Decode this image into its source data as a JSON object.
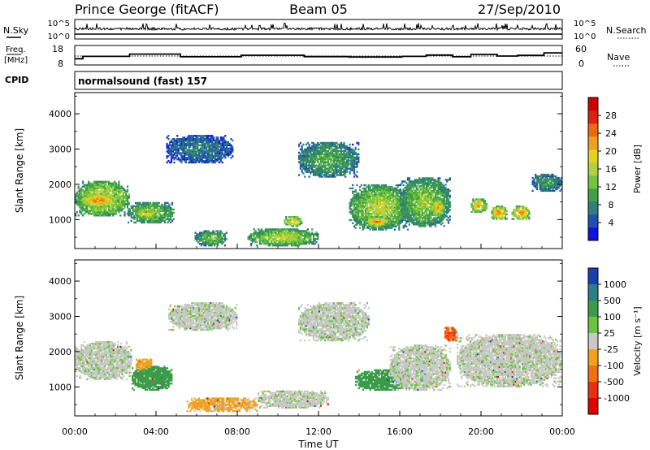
{
  "header": {
    "title": "Prince George (fitACF)",
    "beam": "Beam 05",
    "date": "27/Sep/2010"
  },
  "noise_panel": {
    "left_label": "N.Sky",
    "right_label": "N.Search",
    "left_ticks": [
      "10^5",
      "10^0"
    ],
    "right_ticks": [
      "10^5",
      "10^0"
    ]
  },
  "freq_panel": {
    "left_label_1": "Freq.",
    "left_label_2": "[MHz]",
    "right_label": "Nave",
    "left_ticks": [
      "18",
      "8"
    ],
    "right_ticks": [
      "60",
      "0"
    ]
  },
  "cpid": {
    "label": "CPID",
    "mode": "normalsound (fast) 157"
  },
  "axes": {
    "ylabel": "Slant Range [km]",
    "xlabel": "Time UT",
    "y_ticks": [
      "1000",
      "2000",
      "3000",
      "4000"
    ],
    "x_ticks": [
      "00:00",
      "04:00",
      "08:00",
      "12:00",
      "16:00",
      "20:00",
      "00:00"
    ]
  },
  "power_scale": {
    "label": "Power [dB]",
    "ticks": [
      "4",
      "8",
      "12",
      "16",
      "20",
      "24",
      "28"
    ],
    "colors": [
      "#1010e0",
      "#2050b0",
      "#2f7f7a",
      "#3f9f4a",
      "#72c43c",
      "#b4d040",
      "#e6d020",
      "#f0a020",
      "#ee6a10",
      "#e02010",
      "#d00000"
    ]
  },
  "velocity_scale": {
    "label": "Velocity [m s⁻¹]",
    "ticks": [
      "1000",
      "500",
      "100",
      "25",
      "-25",
      "-100",
      "-500",
      "-1000"
    ],
    "colors": [
      "#1a3fb0",
      "#2b7e8a",
      "#3a9c4a",
      "#6cc43c",
      "#c8c8c4",
      "#c8c8c4",
      "#f2a020",
      "#f07010",
      "#e83010",
      "#e00000"
    ]
  },
  "chart_data": [
    {
      "type": "heatmap",
      "title": "Power",
      "xlabel": "Time UT",
      "ylabel": "Slant Range [km]",
      "xlim": [
        0,
        24
      ],
      "ylim": [
        180,
        4600
      ],
      "colorbar_label": "Power [dB]",
      "colorbar_range": [
        0,
        32
      ],
      "blobs": [
        {
          "t": [
            0.0,
            2.7
          ],
          "r": [
            1100,
            2100
          ],
          "level": 20
        },
        {
          "t": [
            0.2,
            2.2
          ],
          "r": [
            1350,
            1750
          ],
          "level": 26
        },
        {
          "t": [
            2.6,
            4.9
          ],
          "r": [
            900,
            1500
          ],
          "level": 16
        },
        {
          "t": [
            3.0,
            4.0
          ],
          "r": [
            1050,
            1250
          ],
          "level": 24
        },
        {
          "t": [
            4.5,
            7.8
          ],
          "r": [
            2600,
            3400
          ],
          "level": 7
        },
        {
          "t": [
            5.9,
            7.5
          ],
          "r": [
            250,
            700
          ],
          "level": 14
        },
        {
          "t": [
            8.5,
            12.0
          ],
          "r": [
            250,
            750
          ],
          "level": 18
        },
        {
          "t": [
            10.3,
            11.2
          ],
          "r": [
            800,
            1100
          ],
          "level": 22
        },
        {
          "t": [
            11.0,
            14.0
          ],
          "r": [
            2200,
            3200
          ],
          "level": 12
        },
        {
          "t": [
            13.5,
            16.5
          ],
          "r": [
            700,
            2000
          ],
          "level": 18
        },
        {
          "t": [
            14.3,
            15.5
          ],
          "r": [
            800,
            1100
          ],
          "level": 25
        },
        {
          "t": [
            16.0,
            18.5
          ],
          "r": [
            800,
            2200
          ],
          "level": 16
        },
        {
          "t": [
            17.5,
            18.2
          ],
          "r": [
            1100,
            1600
          ],
          "level": 24
        },
        {
          "t": [
            19.5,
            20.3
          ],
          "r": [
            1200,
            1600
          ],
          "level": 24
        },
        {
          "t": [
            20.5,
            21.3
          ],
          "r": [
            1000,
            1400
          ],
          "level": 26
        },
        {
          "t": [
            21.5,
            22.4
          ],
          "r": [
            1000,
            1400
          ],
          "level": 26
        },
        {
          "t": [
            22.5,
            24.0
          ],
          "r": [
            1800,
            2300
          ],
          "level": 10
        }
      ]
    },
    {
      "type": "heatmap",
      "title": "Velocity",
      "xlabel": "Time UT",
      "ylabel": "Slant Range [km]",
      "xlim": [
        0,
        24
      ],
      "ylim": [
        180,
        4600
      ],
      "colorbar_label": "Velocity [m s⁻¹]",
      "colorbar_range": [
        -1000,
        1000
      ],
      "blobs": [
        {
          "t": [
            0.0,
            2.8
          ],
          "r": [
            1200,
            2300
          ],
          "v": 0
        },
        {
          "t": [
            2.8,
            4.8
          ],
          "r": [
            900,
            1600
          ],
          "v": 100
        },
        {
          "t": [
            3.0,
            3.8
          ],
          "r": [
            1500,
            1800
          ],
          "v": -200
        },
        {
          "t": [
            4.6,
            8.0
          ],
          "r": [
            2600,
            3400
          ],
          "v": 0
        },
        {
          "t": [
            5.5,
            9.0
          ],
          "r": [
            300,
            700
          ],
          "v": -80
        },
        {
          "t": [
            9.0,
            12.5
          ],
          "r": [
            400,
            900
          ],
          "v": 0
        },
        {
          "t": [
            11.0,
            14.5
          ],
          "r": [
            2300,
            3400
          ],
          "v": 0
        },
        {
          "t": [
            13.8,
            16.5
          ],
          "r": [
            900,
            1500
          ],
          "v": 100
        },
        {
          "t": [
            15.5,
            18.5
          ],
          "r": [
            900,
            2200
          ],
          "v": 0
        },
        {
          "t": [
            18.2,
            18.8
          ],
          "r": [
            2300,
            2700
          ],
          "v": -700
        },
        {
          "t": [
            18.8,
            24.0
          ],
          "r": [
            1000,
            2500
          ],
          "v": 0
        }
      ]
    },
    {
      "type": "line",
      "title": "Frequency",
      "ylabel": "Freq. [MHz]",
      "ylim": [
        8,
        18
      ],
      "x": [
        0,
        0.4,
        2.7,
        5.2,
        8.2,
        11.3,
        13.5,
        16.1,
        17.3,
        18.6,
        19.5,
        20.8,
        21.8,
        23.1,
        24
      ],
      "values": [
        11.2,
        12.4,
        13.6,
        12.2,
        13.0,
        12.3,
        12.1,
        12.4,
        13.1,
        12.2,
        13.4,
        12.6,
        12.9,
        14.2,
        14.2
      ]
    }
  ]
}
